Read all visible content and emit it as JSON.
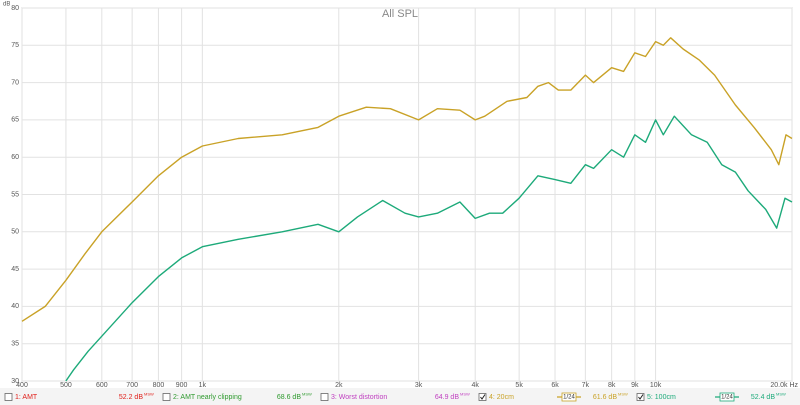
{
  "chart_data": {
    "type": "line",
    "title": "All SPL",
    "y_unit": "dB",
    "xscale": "log",
    "grid": true,
    "xlim": [
      400,
      20000
    ],
    "ylim": [
      30,
      80
    ],
    "yticks": [
      30,
      35,
      40,
      45,
      50,
      55,
      60,
      65,
      70,
      75,
      80
    ],
    "xticks": [
      400,
      500,
      600,
      700,
      800,
      900,
      {
        "value": 1000,
        "label": "1k"
      },
      {
        "value": 2000,
        "label": "2k"
      },
      {
        "value": 3000,
        "label": "3k"
      },
      {
        "value": 4000,
        "label": "4k"
      },
      {
        "value": 5000,
        "label": "5k"
      },
      {
        "value": 6000,
        "label": "6k"
      },
      {
        "value": 7000,
        "label": "7k"
      },
      {
        "value": 8000,
        "label": "8k"
      },
      {
        "value": 9000,
        "label": "9k"
      },
      {
        "value": 10000,
        "label": "10k"
      },
      {
        "value": 20000,
        "label": "20.0k Hz"
      }
    ],
    "series": [
      {
        "name": "4: 20cm",
        "color": "#c9a227",
        "x": [
          400,
          450,
          500,
          550,
          600,
          700,
          800,
          900,
          1000,
          1200,
          1500,
          1800,
          2000,
          2300,
          2600,
          3000,
          3300,
          3700,
          4000,
          4200,
          4700,
          5200,
          5500,
          5800,
          6100,
          6500,
          7000,
          7300,
          8000,
          8500,
          9000,
          9500,
          10000,
          10400,
          10800,
          11500,
          12500,
          13500,
          15000,
          16500,
          18000,
          18700,
          19400,
          20000
        ],
        "values": [
          38,
          40,
          43.5,
          47,
          50,
          54,
          57.5,
          60,
          61.5,
          62.5,
          63,
          64,
          65.5,
          66.7,
          66.5,
          65,
          66.5,
          66.3,
          65,
          65.5,
          67.5,
          68,
          69.5,
          70,
          69,
          69,
          71,
          70,
          72,
          71.5,
          74,
          73.5,
          75.5,
          75,
          76,
          74.5,
          73,
          71,
          67,
          64,
          61,
          59,
          63,
          62.5
        ]
      },
      {
        "name": "5: 100cm",
        "color": "#1daa7a",
        "x": [
          500,
          520,
          560,
          600,
          700,
          800,
          900,
          1000,
          1200,
          1500,
          1800,
          2000,
          2200,
          2500,
          2800,
          3000,
          3300,
          3700,
          4000,
          4300,
          4600,
          5000,
          5500,
          6000,
          6500,
          7000,
          7300,
          8000,
          8500,
          9000,
          9500,
          10000,
          10400,
          11000,
          12000,
          13000,
          14000,
          15000,
          16000,
          17500,
          18500,
          19300,
          20000
        ],
        "values": [
          30,
          31.5,
          34,
          36,
          40.5,
          44,
          46.5,
          48,
          49,
          50,
          51,
          50,
          52,
          54.2,
          52.5,
          52,
          52.5,
          54,
          51.8,
          52.5,
          52.5,
          54.5,
          57.5,
          57,
          56.5,
          59,
          58.5,
          61,
          60,
          63,
          62,
          65,
          63,
          65.5,
          63,
          62,
          59,
          58,
          55.5,
          53,
          50.5,
          54.5,
          54
        ]
      }
    ],
    "reading_suffix": "MSW",
    "smoothing": "1/24",
    "legend_entries": [
      {
        "name": "1: AMT",
        "reading": "52.2 dB",
        "color": "#e0201b",
        "checked": false,
        "smoothed": false
      },
      {
        "name": "2: AMT nearly clipping",
        "reading": "68.6 dB",
        "color": "#2f9a2f",
        "checked": false,
        "smoothed": false
      },
      {
        "name": "3: Worst distortion",
        "reading": "64.9 dB",
        "color": "#c040c0",
        "checked": false,
        "smoothed": false
      },
      {
        "name": "4: 20cm",
        "reading": "61.6 dB",
        "color": "#c9a227",
        "checked": true,
        "smoothed": true
      },
      {
        "name": "5: 100cm",
        "reading": "52.4 dB",
        "color": "#1daa7a",
        "checked": true,
        "smoothed": true
      }
    ]
  }
}
